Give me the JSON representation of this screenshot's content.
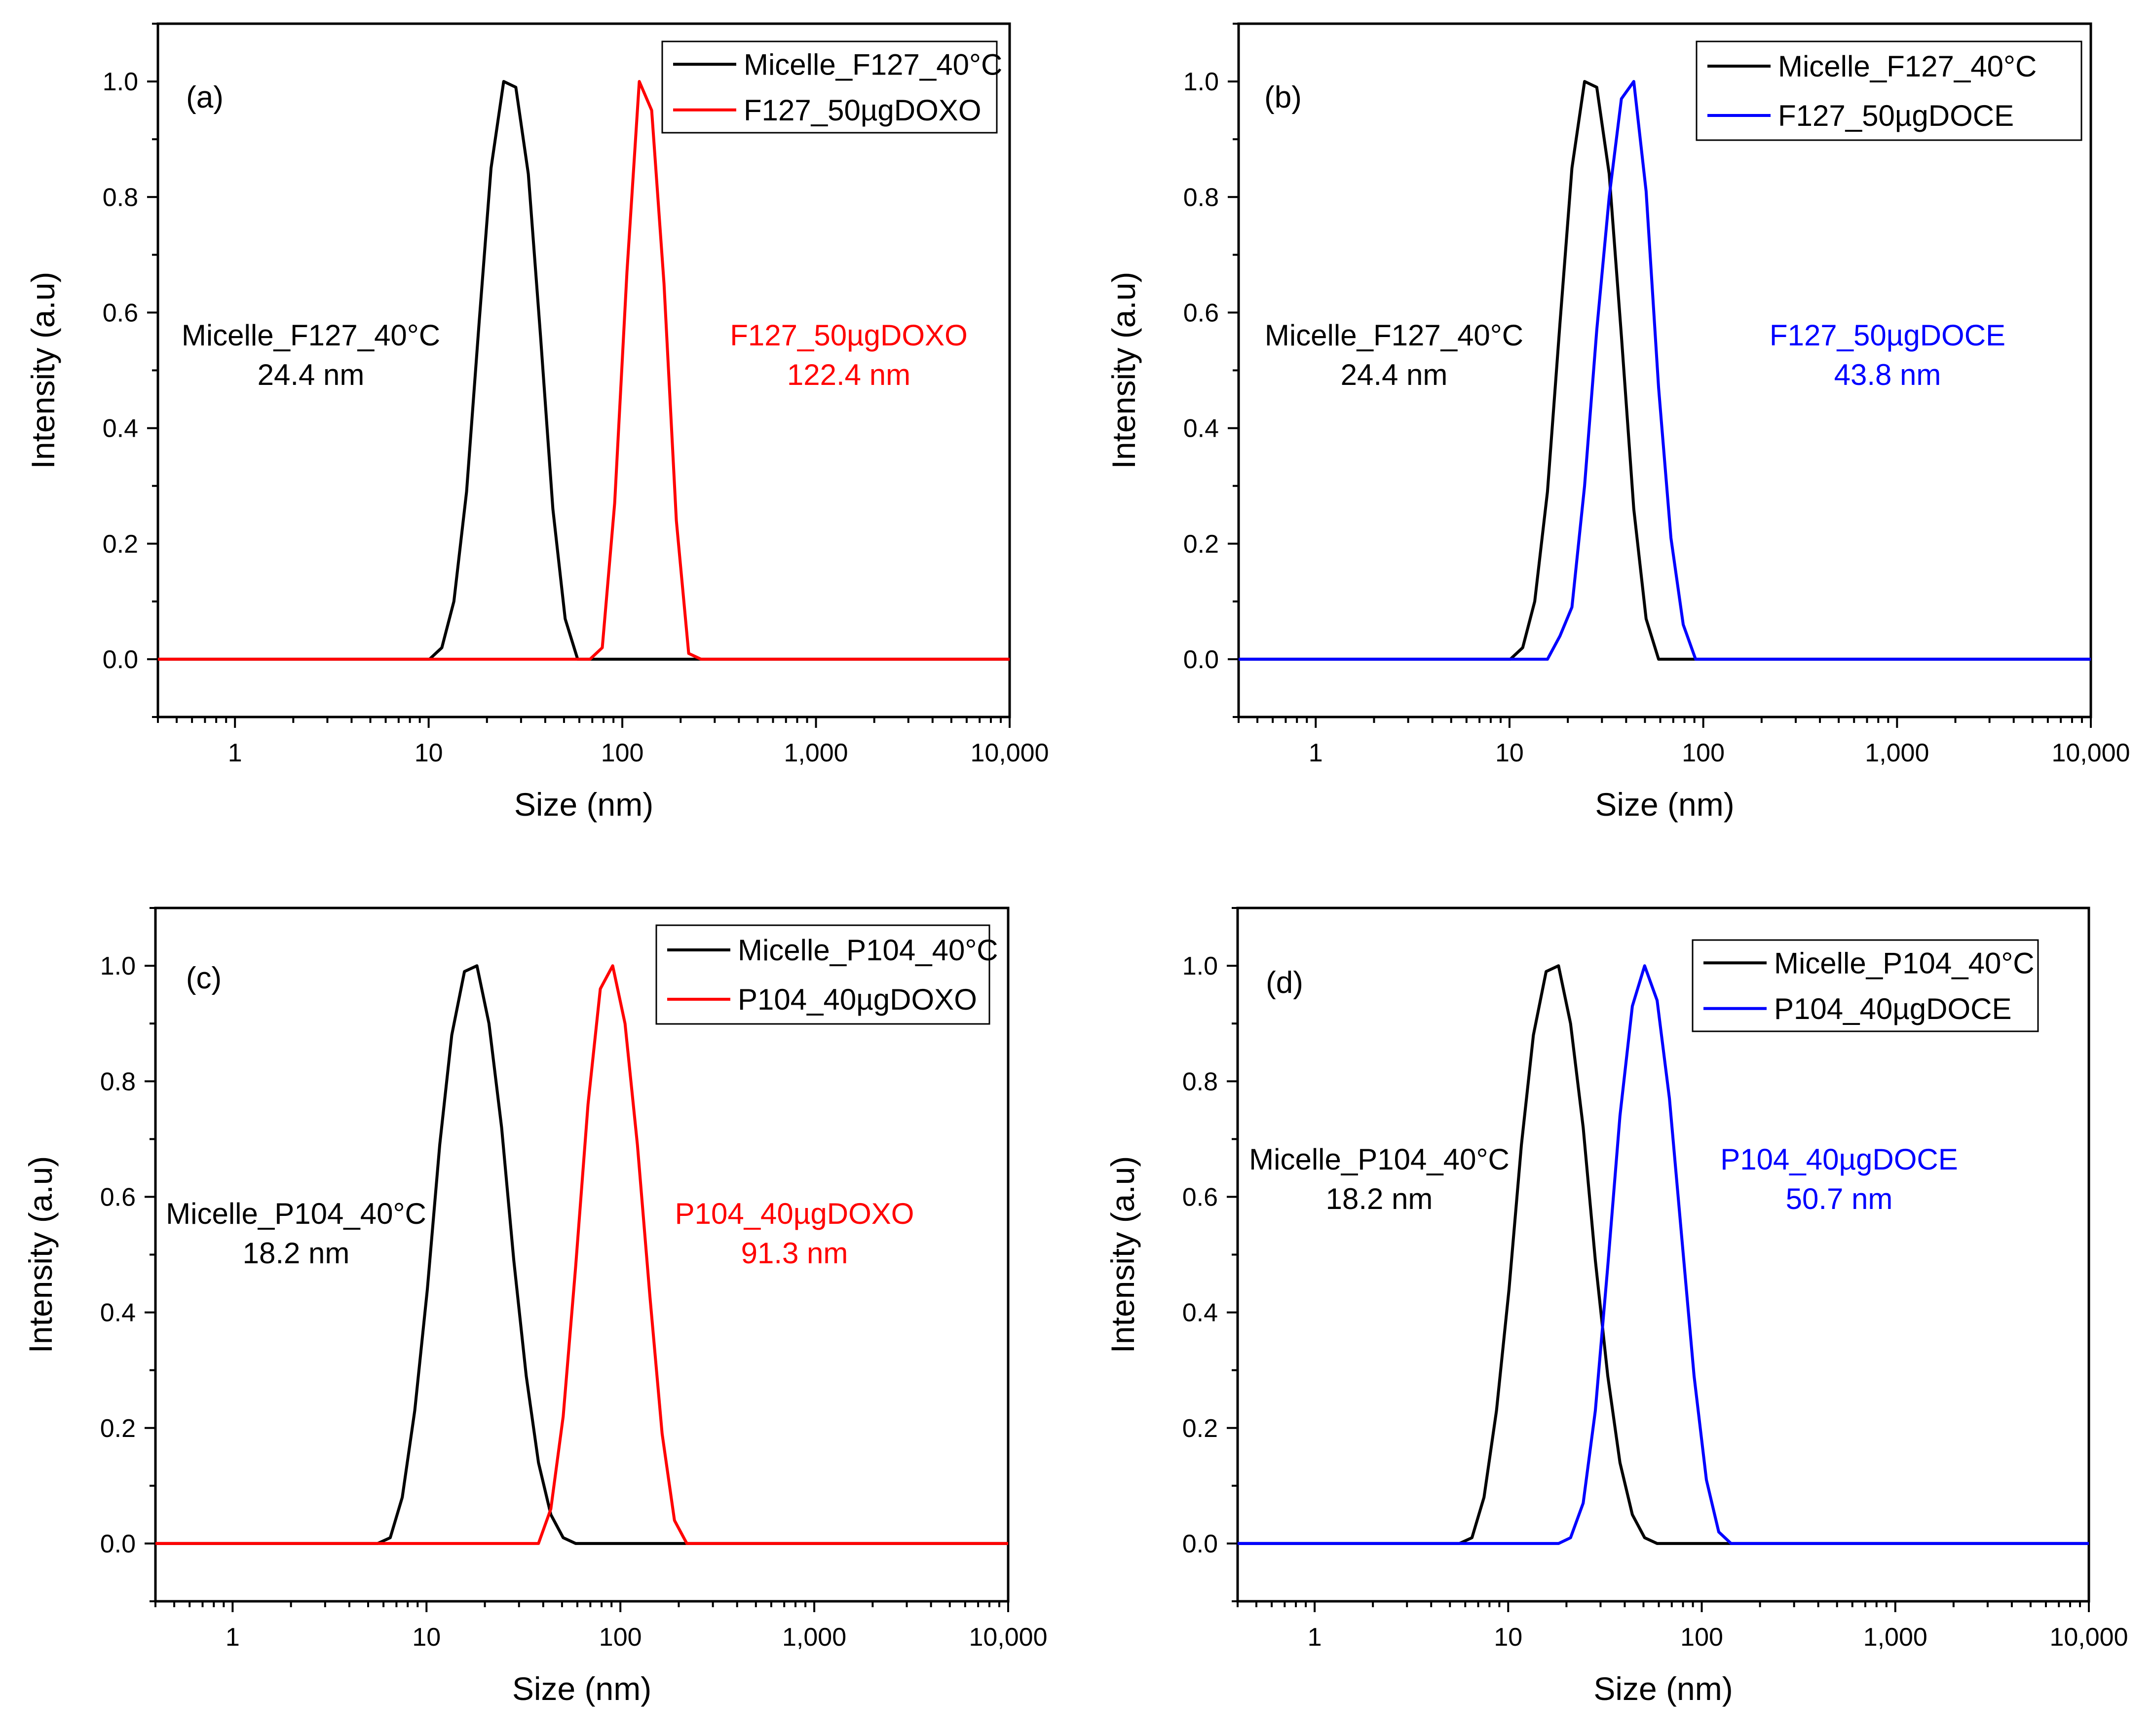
{
  "chart_data": [
    {
      "type": "line",
      "panel_label": "(a)",
      "xlabel": "Size (nm)",
      "ylabel": "Intensity (a.u)",
      "xscale": "log",
      "xlim": [
        0.4,
        10000
      ],
      "ylim": [
        -0.1,
        1.1
      ],
      "xticks": [
        1,
        10,
        100,
        1000,
        10000
      ],
      "xtick_labels": [
        "1",
        "10",
        "100",
        "1,000",
        "10,000"
      ],
      "yticks": [
        0.0,
        0.2,
        0.4,
        0.6,
        0.8,
        1.0
      ],
      "ytick_labels": [
        "0.0",
        "0.2",
        "0.4",
        "0.6",
        "0.8",
        "1.0"
      ],
      "legend_position": "top-right",
      "series": [
        {
          "name": "Micelle_F127_40°C",
          "color": "#000000",
          "x": [
            0.4,
            10.1,
            11.7,
            13.5,
            15.7,
            18.2,
            21.0,
            24.4,
            28.2,
            32.7,
            37.8,
            43.8,
            50.7,
            58.8,
            10000
          ],
          "y": [
            0,
            0,
            0.02,
            0.1,
            0.29,
            0.58,
            0.85,
            1.0,
            0.99,
            0.84,
            0.56,
            0.26,
            0.07,
            0,
            0
          ]
        },
        {
          "name": "F127_50µgDOXO",
          "color": "#ff0000",
          "x": [
            0.4,
            68.1,
            78.8,
            91.3,
            105.7,
            122.4,
            141.8,
            164.2,
            190.1,
            220.2,
            255.0,
            10000
          ],
          "y": [
            0,
            0,
            0.02,
            0.27,
            0.67,
            1.0,
            0.95,
            0.65,
            0.24,
            0.01,
            0,
            0
          ]
        }
      ],
      "annotations": [
        {
          "lines": [
            "Micelle_F127_40°C",
            "24.4 nm"
          ],
          "color": "#000000"
        },
        {
          "lines": [
            "F127_50µgDOXO",
            "122.4 nm"
          ],
          "color": "#ff0000"
        }
      ]
    },
    {
      "type": "line",
      "panel_label": "(b)",
      "xlabel": "Size (nm)",
      "ylabel": "Intensity (a.u)",
      "xscale": "log",
      "xlim": [
        0.4,
        10000
      ],
      "ylim": [
        -0.1,
        1.1
      ],
      "xticks": [
        1,
        10,
        100,
        1000,
        10000
      ],
      "xtick_labels": [
        "1",
        "10",
        "100",
        "1,000",
        "10,000"
      ],
      "yticks": [
        0.0,
        0.2,
        0.4,
        0.6,
        0.8,
        1.0
      ],
      "ytick_labels": [
        "0.0",
        "0.2",
        "0.4",
        "0.6",
        "0.8",
        "1.0"
      ],
      "legend_position": "top-right",
      "series": [
        {
          "name": "Micelle_F127_40°C",
          "color": "#000000",
          "x": [
            0.4,
            10.1,
            11.7,
            13.5,
            15.7,
            18.2,
            21.0,
            24.4,
            28.2,
            32.7,
            37.8,
            43.8,
            50.7,
            58.8,
            10000
          ],
          "y": [
            0,
            0,
            0.02,
            0.1,
            0.29,
            0.58,
            0.85,
            1.0,
            0.99,
            0.84,
            0.56,
            0.26,
            0.07,
            0,
            0
          ]
        },
        {
          "name": "F127_50µgDOCE",
          "color": "#0000ff",
          "x": [
            0.4,
            15.7,
            18.2,
            21.0,
            24.4,
            28.2,
            32.7,
            37.8,
            43.8,
            50.7,
            58.8,
            68.1,
            78.8,
            91.3,
            10000
          ],
          "y": [
            0,
            0,
            0.04,
            0.09,
            0.3,
            0.57,
            0.8,
            0.97,
            1.0,
            0.81,
            0.47,
            0.21,
            0.06,
            0,
            0
          ]
        }
      ],
      "annotations": [
        {
          "lines": [
            "Micelle_F127_40°C",
            "24.4 nm"
          ],
          "color": "#000000"
        },
        {
          "lines": [
            "F127_50µgDOCE",
            "43.8 nm"
          ],
          "color": "#0000ff"
        }
      ]
    },
    {
      "type": "line",
      "panel_label": "(c)",
      "xlabel": "Size (nm)",
      "ylabel": "Intensity (a.u)",
      "xscale": "log",
      "xlim": [
        0.4,
        10000
      ],
      "ylim": [
        -0.1,
        1.1
      ],
      "xticks": [
        1,
        10,
        100,
        1000,
        10000
      ],
      "xtick_labels": [
        "1",
        "10",
        "100",
        "1,000",
        "10,000"
      ],
      "yticks": [
        0.0,
        0.2,
        0.4,
        0.6,
        0.8,
        1.0
      ],
      "ytick_labels": [
        "0.0",
        "0.2",
        "0.4",
        "0.6",
        "0.8",
        "1.0"
      ],
      "legend_position": "top-right",
      "series": [
        {
          "name": "Micelle_P104_40°C",
          "color": "#000000",
          "x": [
            0.4,
            5.6,
            6.5,
            7.5,
            8.7,
            10.1,
            11.7,
            13.5,
            15.7,
            18.2,
            21.0,
            24.4,
            28.2,
            32.7,
            37.8,
            43.8,
            50.7,
            58.8,
            10000
          ],
          "y": [
            0,
            0,
            0.01,
            0.08,
            0.23,
            0.44,
            0.69,
            0.88,
            0.99,
            1.0,
            0.9,
            0.72,
            0.49,
            0.29,
            0.14,
            0.05,
            0.01,
            0,
            0
          ]
        },
        {
          "name": "P104_40µgDOXO",
          "color": "#ff0000",
          "x": [
            0.4,
            37.8,
            43.8,
            50.7,
            58.8,
            68.1,
            78.8,
            91.3,
            105.7,
            122.4,
            141.8,
            164.2,
            190.1,
            220.2,
            10000
          ],
          "y": [
            0,
            0,
            0.06,
            0.22,
            0.48,
            0.76,
            0.96,
            1.0,
            0.9,
            0.69,
            0.43,
            0.19,
            0.04,
            0,
            0
          ]
        }
      ],
      "annotations": [
        {
          "lines": [
            "Micelle_P104_40°C",
            "18.2 nm"
          ],
          "color": "#000000"
        },
        {
          "lines": [
            "P104_40µgDOXO",
            "91.3 nm"
          ],
          "color": "#ff0000"
        }
      ]
    },
    {
      "type": "line",
      "panel_label": "(d)",
      "xlabel": "Size (nm)",
      "ylabel": "Intensity (a.u)",
      "xscale": "log",
      "xlim": [
        0.4,
        10000
      ],
      "ylim": [
        -0.1,
        1.1
      ],
      "xticks": [
        1,
        10,
        100,
        1000,
        10000
      ],
      "xtick_labels": [
        "1",
        "10",
        "100",
        "1,000",
        "10,000"
      ],
      "yticks": [
        0.0,
        0.2,
        0.4,
        0.6,
        0.8,
        1.0
      ],
      "ytick_labels": [
        "0.0",
        "0.2",
        "0.4",
        "0.6",
        "0.8",
        "1.0"
      ],
      "legend_position": "top-right",
      "series": [
        {
          "name": "Micelle_P104_40°C",
          "color": "#000000",
          "x": [
            0.4,
            5.6,
            6.5,
            7.5,
            8.7,
            10.1,
            11.7,
            13.5,
            15.7,
            18.2,
            21.0,
            24.4,
            28.2,
            32.7,
            37.8,
            43.8,
            50.7,
            58.8,
            10000
          ],
          "y": [
            0,
            0,
            0.01,
            0.08,
            0.23,
            0.44,
            0.69,
            0.88,
            0.99,
            1.0,
            0.9,
            0.72,
            0.49,
            0.29,
            0.14,
            0.05,
            0.01,
            0,
            0
          ]
        },
        {
          "name": "P104_40µgDOCE",
          "color": "#0000ff",
          "x": [
            0.4,
            18.2,
            21.0,
            24.4,
            28.2,
            32.7,
            37.8,
            43.8,
            50.7,
            58.8,
            68.1,
            78.8,
            91.3,
            105.7,
            122.4,
            141.8,
            10000
          ],
          "y": [
            0,
            0,
            0.01,
            0.07,
            0.23,
            0.48,
            0.74,
            0.93,
            1.0,
            0.94,
            0.77,
            0.53,
            0.29,
            0.11,
            0.02,
            0,
            0
          ]
        }
      ],
      "annotations": [
        {
          "lines": [
            "Micelle_P104_40°C",
            "18.2 nm"
          ],
          "color": "#000000"
        },
        {
          "lines": [
            "P104_40µgDOCE",
            "50.7 nm"
          ],
          "color": "#0000ff"
        }
      ]
    }
  ]
}
